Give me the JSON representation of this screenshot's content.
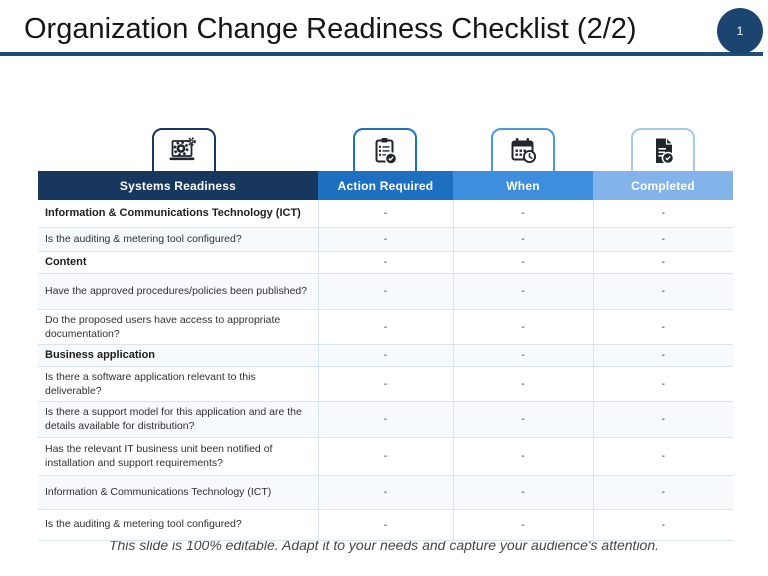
{
  "slide": {
    "title": "Organization Change Readiness Checklist (2/2)",
    "page_number": "1",
    "footer": "This slide is 100% editable. Adapt it to your needs and capture your audience's attention."
  },
  "colors": {
    "header_systems_readiness": "#17375E",
    "header_action_required": "#1D6FBF",
    "header_when": "#3E8EDE",
    "header_completed": "#82B4E9",
    "title_rule": "#1F4E79",
    "page_badge": "#1C4470",
    "bottom_bar": "#17375E"
  },
  "icons": [
    {
      "name": "laptop-gears-icon"
    },
    {
      "name": "clipboard-check-icon"
    },
    {
      "name": "calendar-clock-icon"
    },
    {
      "name": "document-check-icon"
    }
  ],
  "table": {
    "columns": [
      {
        "label": "Systems Readiness"
      },
      {
        "label": "Action Required"
      },
      {
        "label": "When"
      },
      {
        "label": "Completed"
      }
    ],
    "rows": [
      {
        "label": "Information & Communications Technology (ICT)",
        "bold": true,
        "values": [
          "-",
          "-",
          "-"
        ]
      },
      {
        "label": "Is the auditing & metering tool configured?",
        "bold": false,
        "values": [
          "-",
          "-",
          "-"
        ]
      },
      {
        "label": "Content",
        "bold": true,
        "values": [
          "-",
          "-",
          "-"
        ]
      },
      {
        "label": "Have the approved procedures/policies been published?",
        "bold": false,
        "values": [
          "-",
          "-",
          "-"
        ]
      },
      {
        "label": "Do the proposed users have access to appropriate documentation?",
        "bold": false,
        "values": [
          "-",
          "-",
          "-"
        ]
      },
      {
        "label": "Business application",
        "bold": true,
        "values": [
          "-",
          "-",
          "-"
        ]
      },
      {
        "label": "Is there a software application relevant to this deliverable?",
        "bold": false,
        "values": [
          "-",
          "-",
          "-"
        ]
      },
      {
        "label": "Is there a support model for this application and are the details available for distribution?",
        "bold": false,
        "values": [
          "-",
          "-",
          "-"
        ]
      },
      {
        "label": "Has the relevant IT business unit been notified of installation and support requirements?",
        "bold": false,
        "values": [
          "-",
          "-",
          "-"
        ]
      },
      {
        "label": "Information & Communications Technology (ICT)",
        "bold": false,
        "values": [
          "-",
          "-",
          "-"
        ]
      },
      {
        "label": "Is the auditing & metering tool configured?",
        "bold": false,
        "values": [
          "-",
          "-",
          "-"
        ]
      }
    ]
  }
}
